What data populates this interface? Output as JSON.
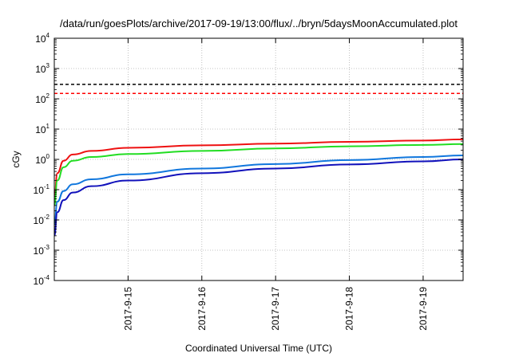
{
  "chart_data": {
    "type": "line",
    "title": "/data/run/goesPlots/archive/2017-09-19/13:00/flux/../bryn/5daysMoonAccumulated.plot",
    "xlabel": "Coordinated Universal Time (UTC)",
    "ylabel": "cGy",
    "xlim": [
      "2017-09-14T00:00",
      "2017-09-19T13:00"
    ],
    "ylim": [
      0.0001,
      10000
    ],
    "yscale": "log",
    "grid": true,
    "x_ticks": [
      {
        "label": "2017-9-15",
        "value": "2017-09-15T00:00"
      },
      {
        "label": "2017-9-16",
        "value": "2017-09-16T00:00"
      },
      {
        "label": "2017-9-17",
        "value": "2017-09-17T00:00"
      },
      {
        "label": "2017-9-18",
        "value": "2017-09-18T00:00"
      },
      {
        "label": "2017-9-19",
        "value": "2017-09-19T00:00"
      }
    ],
    "y_ticks": [
      {
        "base": "10",
        "exp": "-4",
        "value": 0.0001
      },
      {
        "base": "10",
        "exp": "-3",
        "value": 0.001
      },
      {
        "base": "10",
        "exp": "-2",
        "value": 0.01
      },
      {
        "base": "10",
        "exp": "-1",
        "value": 0.1
      },
      {
        "base": "10",
        "exp": "0",
        "value": 1
      },
      {
        "base": "10",
        "exp": "1",
        "value": 10
      },
      {
        "base": "10",
        "exp": "2",
        "value": 100
      },
      {
        "base": "10",
        "exp": "3",
        "value": 1000
      },
      {
        "base": "10",
        "exp": "4",
        "value": 10000
      }
    ],
    "thresholds": [
      {
        "color": "#000000",
        "value": 300,
        "dash": true
      },
      {
        "color": "#ff0000",
        "value": 150,
        "dash": true
      }
    ],
    "series": [
      {
        "color": "#ee1111",
        "x": [
          "2017-09-14T00:00",
          "2017-09-14T01:00",
          "2017-09-14T03:00",
          "2017-09-14T06:00",
          "2017-09-14T12:00",
          "2017-09-15T00:00",
          "2017-09-16T00:00",
          "2017-09-17T00:00",
          "2017-09-18T00:00",
          "2017-09-19T00:00",
          "2017-09-19T13:00"
        ],
        "y": [
          0.05,
          0.35,
          0.9,
          1.45,
          1.9,
          2.4,
          2.9,
          3.3,
          3.8,
          4.2,
          4.6
        ]
      },
      {
        "color": "#22dd22",
        "x": [
          "2017-09-14T00:00",
          "2017-09-14T01:00",
          "2017-09-14T03:00",
          "2017-09-14T06:00",
          "2017-09-14T12:00",
          "2017-09-15T00:00",
          "2017-09-16T00:00",
          "2017-09-17T00:00",
          "2017-09-18T00:00",
          "2017-09-19T00:00",
          "2017-09-19T13:00"
        ],
        "y": [
          0.03,
          0.2,
          0.55,
          0.9,
          1.2,
          1.5,
          1.9,
          2.3,
          2.7,
          3.0,
          3.2
        ]
      },
      {
        "color": "#1177dd",
        "x": [
          "2017-09-14T00:00",
          "2017-09-14T01:00",
          "2017-09-14T03:00",
          "2017-09-14T06:00",
          "2017-09-14T12:00",
          "2017-09-15T00:00",
          "2017-09-16T00:00",
          "2017-09-17T00:00",
          "2017-09-18T00:00",
          "2017-09-19T00:00",
          "2017-09-19T13:00"
        ],
        "y": [
          0.007,
          0.04,
          0.09,
          0.15,
          0.22,
          0.32,
          0.5,
          0.7,
          0.95,
          1.2,
          1.35
        ]
      },
      {
        "color": "#1111bb",
        "x": [
          "2017-09-14T00:00",
          "2017-09-14T01:00",
          "2017-09-14T03:00",
          "2017-09-14T06:00",
          "2017-09-14T12:00",
          "2017-09-15T00:00",
          "2017-09-16T00:00",
          "2017-09-17T00:00",
          "2017-09-18T00:00",
          "2017-09-19T00:00",
          "2017-09-19T13:00"
        ],
        "y": [
          0.003,
          0.018,
          0.045,
          0.08,
          0.13,
          0.2,
          0.35,
          0.5,
          0.68,
          0.86,
          1.0
        ]
      }
    ]
  }
}
